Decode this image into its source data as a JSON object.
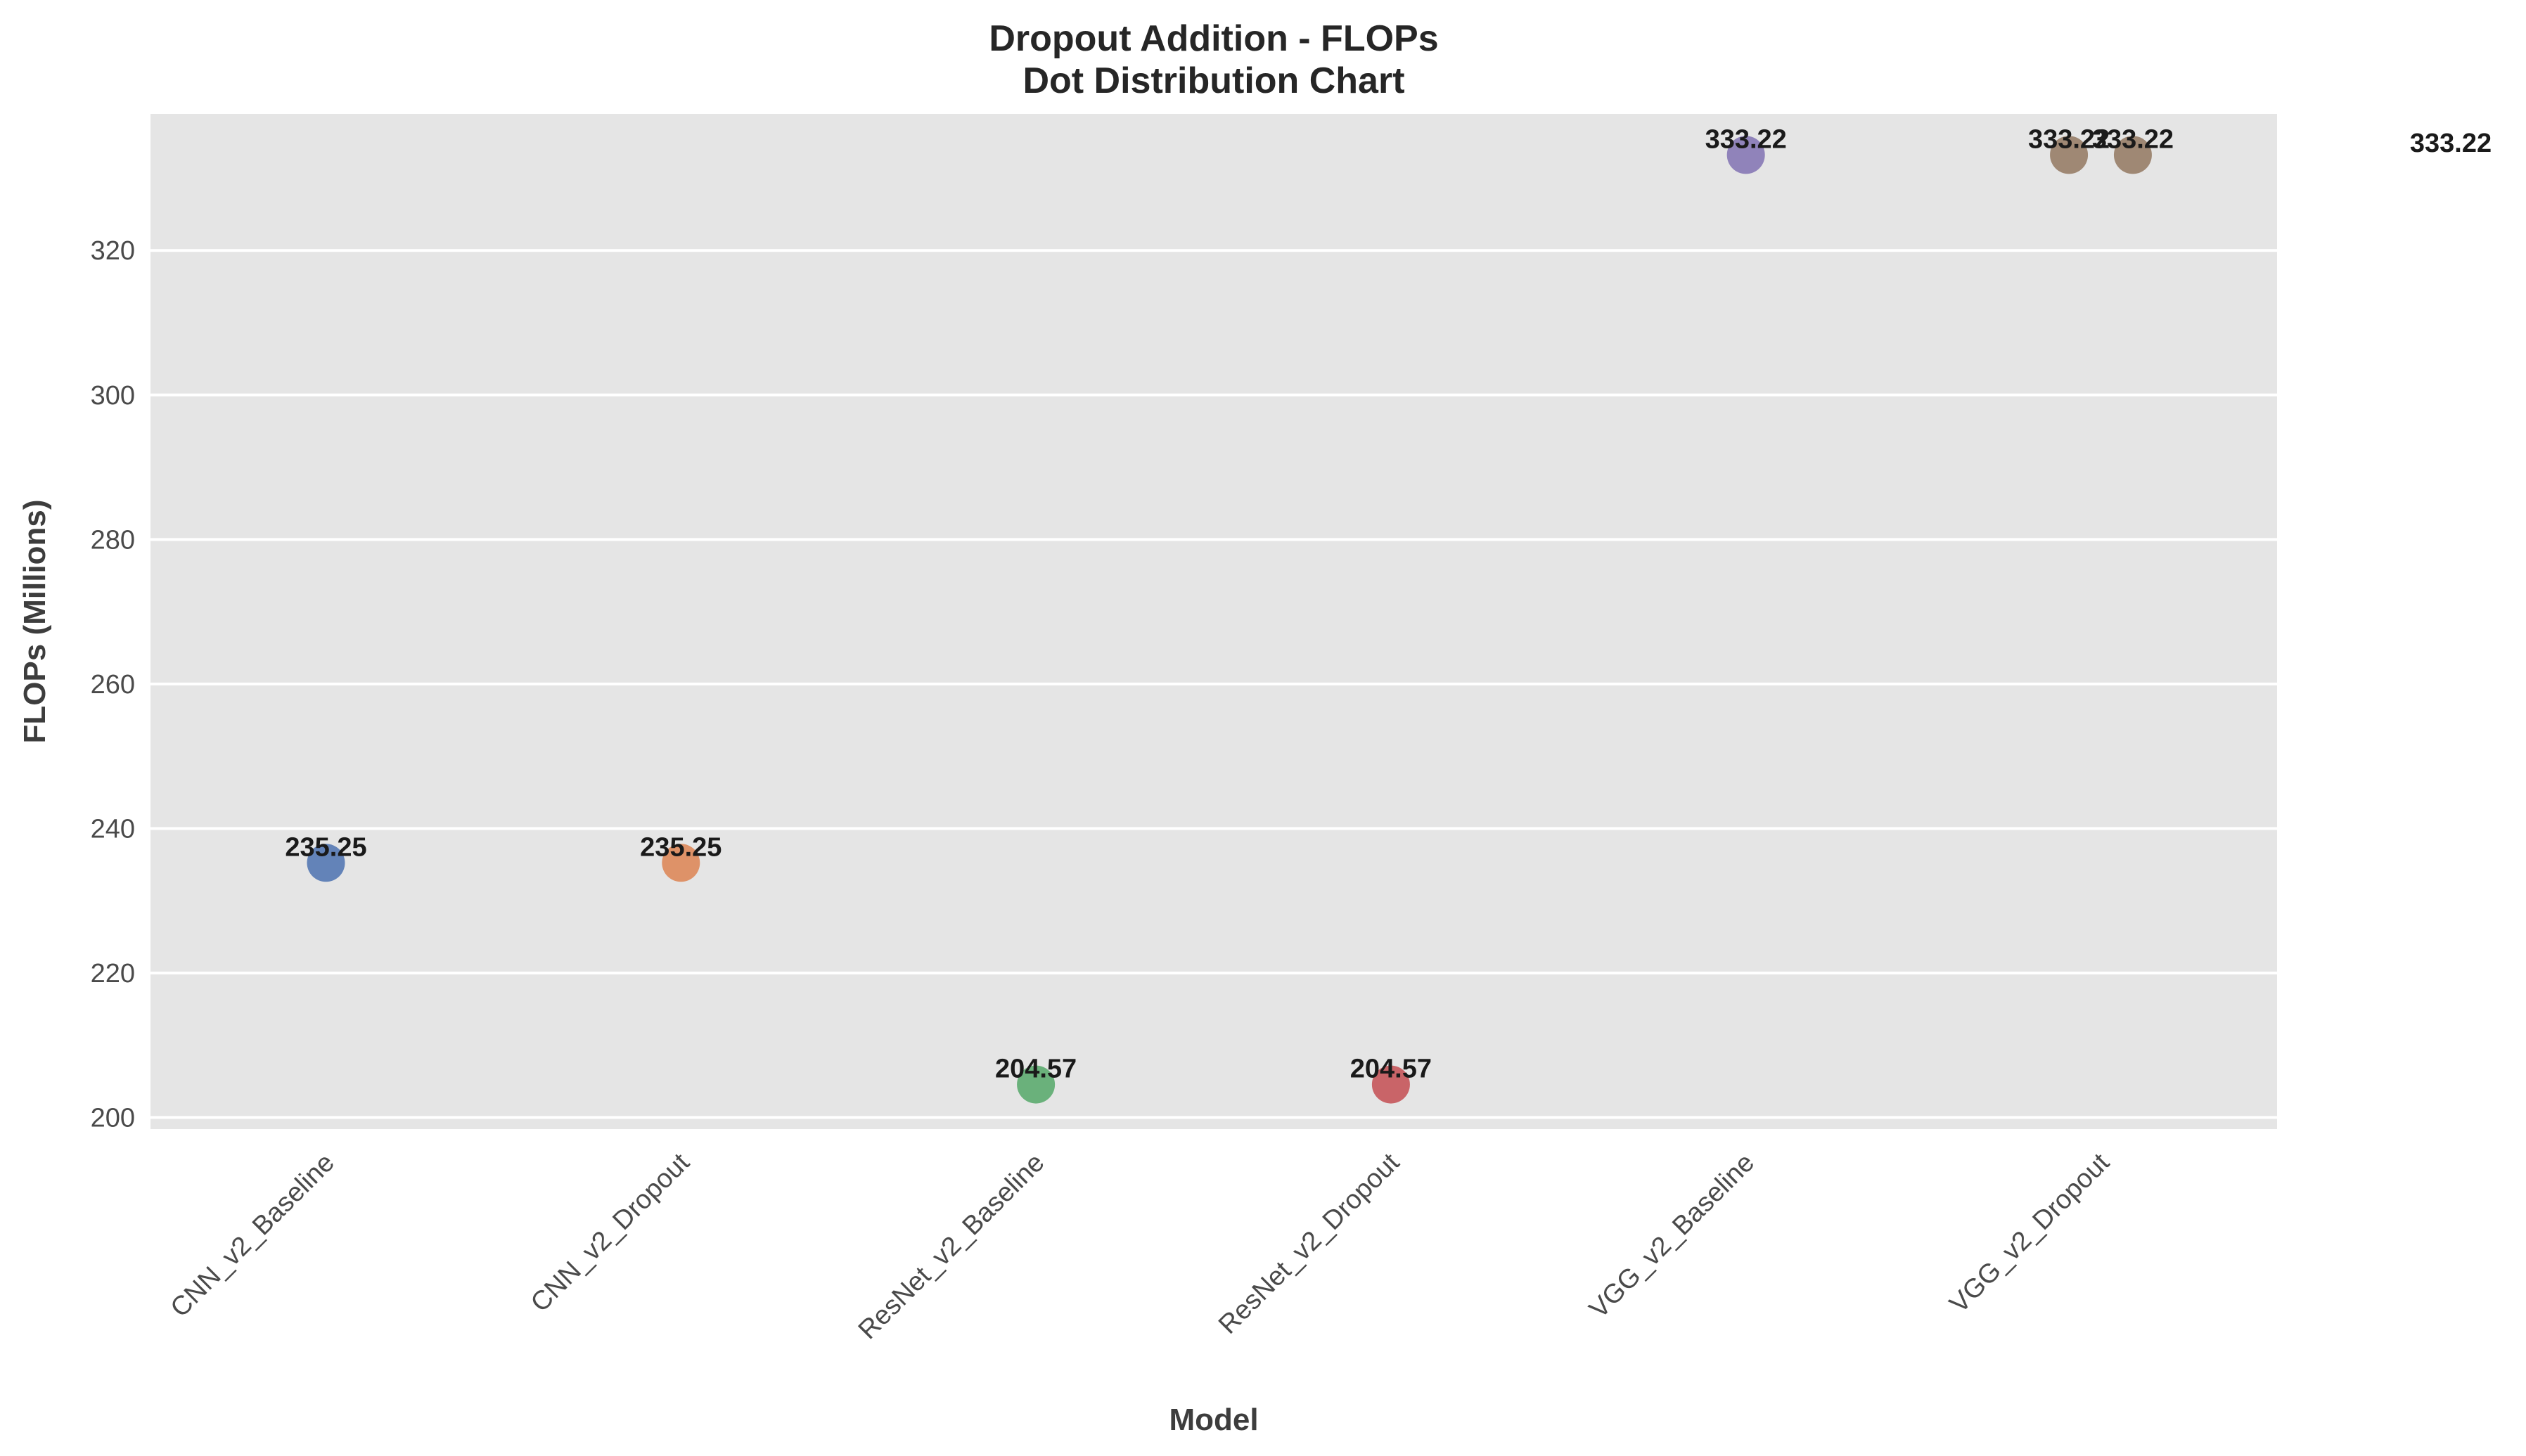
{
  "chart_data": {
    "type": "scatter",
    "title": "Dropout Addition - FLOPs",
    "subtitle": "Dot Distribution Chart",
    "xlabel": "Model",
    "ylabel": "FLOPs (Millions)",
    "categories": [
      "CNN_v2_Baseline",
      "CNN_v2_Dropout",
      "ResNet_v2_Baseline",
      "ResNet_v2_Dropout",
      "VGG_v2_Baseline",
      "VGG_v2_Dropout"
    ],
    "points": [
      {
        "category": "CNN_v2_Baseline",
        "value": 235.25,
        "label": "235.25",
        "color": "#4c72b0"
      },
      {
        "category": "CNN_v2_Dropout",
        "value": 235.25,
        "label": "235.25",
        "color": "#dd8452"
      },
      {
        "category": "ResNet_v2_Baseline",
        "value": 204.57,
        "label": "204.57",
        "color": "#55a868"
      },
      {
        "category": "ResNet_v2_Dropout",
        "value": 204.57,
        "label": "204.57",
        "color": "#c44e52"
      },
      {
        "category": "VGG_v2_Baseline",
        "value": 333.22,
        "label": "333.22",
        "color": "#8172b3"
      },
      {
        "category": "VGG_v2_Dropout",
        "value": 333.22,
        "label": "333.22",
        "color": "#937860",
        "jitter": -0.09
      },
      {
        "category": "VGG_v2_Dropout",
        "value": 333.22,
        "label": "333.22",
        "color": "#937860",
        "jitter": 0.09
      }
    ],
    "outside_label": "333.22",
    "yticks": [
      200,
      220,
      240,
      260,
      280,
      300,
      320
    ],
    "ylim": [
      198.4,
      338.9
    ],
    "grid": true,
    "background_color": "#e5e5e5",
    "grid_color": "#ffffff"
  }
}
